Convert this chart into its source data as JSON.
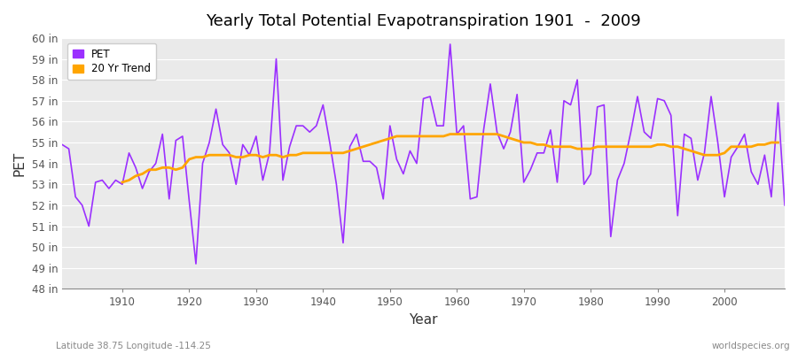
{
  "title": "Yearly Total Potential Evapotranspiration 1901  -  2009",
  "xlabel": "Year",
  "ylabel": "PET",
  "footnote_left": "Latitude 38.75 Longitude -114.25",
  "footnote_right": "worldspecies.org",
  "ylim": [
    48,
    60
  ],
  "ytick_labels": [
    "48 in",
    "49 in",
    "50 in",
    "51 in",
    "52 in",
    "53 in",
    "54 in",
    "55 in",
    "56 in",
    "57 in",
    "58 in",
    "59 in",
    "60 in"
  ],
  "ytick_values": [
    48,
    49,
    50,
    51,
    52,
    53,
    54,
    55,
    56,
    57,
    58,
    59,
    60
  ],
  "pet_color": "#9B30FF",
  "trend_color": "#FFA500",
  "bg_color": "#FFFFFF",
  "plot_bg_color": "#EAEAEA",
  "grid_color": "#FFFFFF",
  "pet_values": [
    54.9,
    54.7,
    52.4,
    52.0,
    51.0,
    53.1,
    53.2,
    52.8,
    53.2,
    53.0,
    54.5,
    53.8,
    52.8,
    53.6,
    54.0,
    55.4,
    52.3,
    55.1,
    55.3,
    52.2,
    49.2,
    54.0,
    55.0,
    56.6,
    54.9,
    54.5,
    53.0,
    54.9,
    54.4,
    55.3,
    53.2,
    54.5,
    59.0,
    53.2,
    54.8,
    55.8,
    55.8,
    55.5,
    55.8,
    56.8,
    55.0,
    53.0,
    50.2,
    54.8,
    55.4,
    54.1,
    54.1,
    53.8,
    52.3,
    55.8,
    54.2,
    53.5,
    54.6,
    54.0,
    57.1,
    57.2,
    55.8,
    55.8,
    59.7,
    55.4,
    55.8,
    52.3,
    52.4,
    55.6,
    57.8,
    55.5,
    54.7,
    55.5,
    57.3,
    53.1,
    53.7,
    54.5,
    54.5,
    55.6,
    53.1,
    57.0,
    56.8,
    58.0,
    53.0,
    53.5,
    56.7,
    56.8,
    50.5,
    53.2,
    54.0,
    55.5,
    57.2,
    55.5,
    55.2,
    57.1,
    57.0,
    56.3,
    51.5,
    55.4,
    55.2,
    53.2,
    54.5,
    57.2,
    55.0,
    52.4,
    54.3,
    54.8,
    55.4,
    53.6,
    53.0,
    54.4,
    52.4,
    56.9,
    52.0
  ],
  "trend_values": [
    null,
    null,
    null,
    null,
    null,
    null,
    null,
    null,
    null,
    53.1,
    53.2,
    53.4,
    53.5,
    53.7,
    53.7,
    53.8,
    53.8,
    53.7,
    53.8,
    54.2,
    54.3,
    54.3,
    54.4,
    54.4,
    54.4,
    54.4,
    54.3,
    54.3,
    54.4,
    54.4,
    54.3,
    54.4,
    54.4,
    54.3,
    54.4,
    54.4,
    54.5,
    54.5,
    54.5,
    54.5,
    54.5,
    54.5,
    54.5,
    54.6,
    54.7,
    54.8,
    54.9,
    55.0,
    55.1,
    55.2,
    55.3,
    55.3,
    55.3,
    55.3,
    55.3,
    55.3,
    55.3,
    55.3,
    55.4,
    55.4,
    55.4,
    55.4,
    55.4,
    55.4,
    55.4,
    55.4,
    55.3,
    55.2,
    55.1,
    55.0,
    55.0,
    54.9,
    54.9,
    54.8,
    54.8,
    54.8,
    54.8,
    54.7,
    54.7,
    54.7,
    54.8,
    54.8,
    54.8,
    54.8,
    54.8,
    54.8,
    54.8,
    54.8,
    54.8,
    54.9,
    54.9,
    54.8,
    54.8,
    54.7,
    54.6,
    54.5,
    54.4,
    54.4,
    54.4,
    54.5,
    54.8,
    54.8,
    54.8,
    54.8,
    54.9,
    54.9,
    55.0,
    55.0,
    null
  ]
}
